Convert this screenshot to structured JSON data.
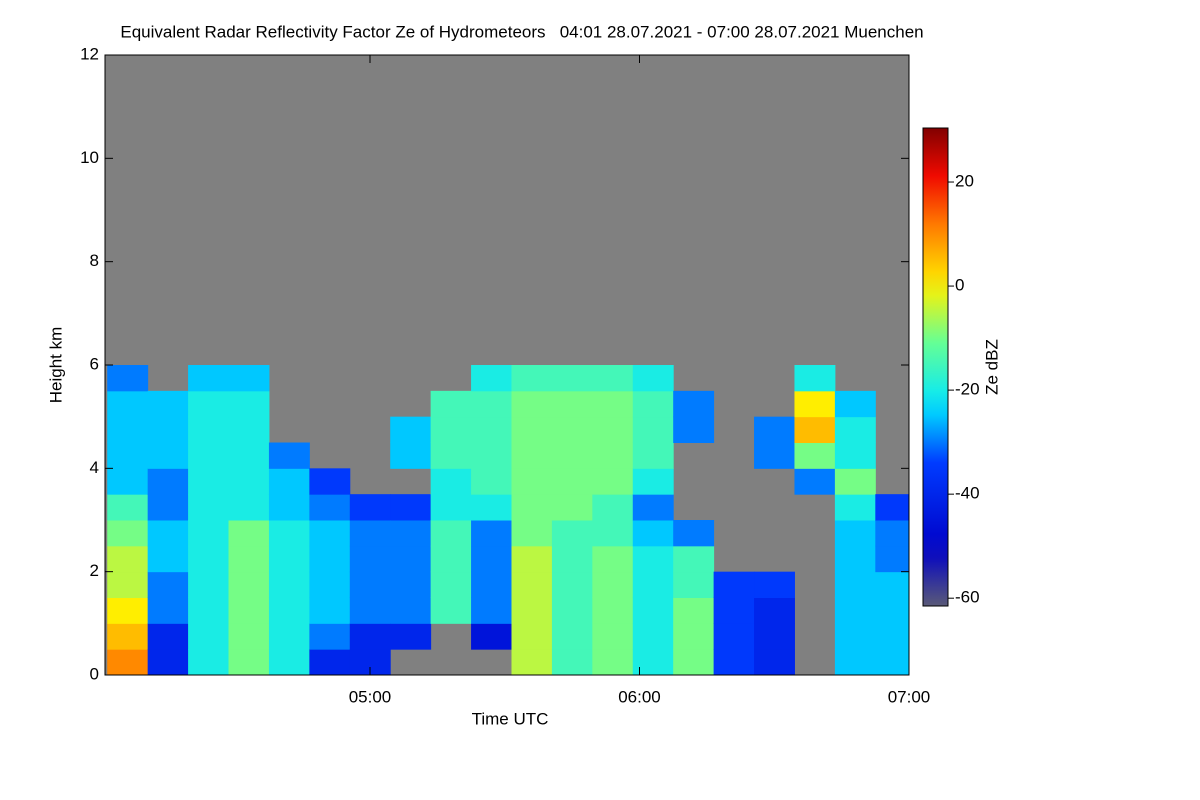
{
  "chart_data": {
    "type": "heatmap",
    "title": "Equivalent Radar Reflectivity Factor Ze of Hydrometeors   04:01 28.07.2021 - 07:00 28.07.2021 Muenchen",
    "x_label": "Time UTC",
    "y_label": "Height km",
    "colorbar_label": "Ze dBZ",
    "background": "#808080",
    "colormap": "jet",
    "xlim": [
      4.0167,
      7.0
    ],
    "xticks": [
      {
        "value": 5,
        "label": "05:00"
      },
      {
        "value": 6,
        "label": "06:00"
      },
      {
        "value": 7,
        "label": "07:00"
      }
    ],
    "ylim": [
      0,
      12
    ],
    "yticks": [
      0,
      2,
      4,
      6,
      8,
      10,
      12
    ],
    "clim": [
      -61.5,
      30
    ],
    "cticks": [
      -60,
      -40,
      -20,
      0,
      20
    ],
    "x": [
      4.1,
      4.25,
      4.4,
      4.55,
      4.7,
      4.85,
      5.0,
      5.15,
      5.3,
      5.45,
      5.6,
      5.75,
      5.9,
      6.05,
      6.2,
      6.35,
      6.5,
      6.65,
      6.8,
      6.95
    ],
    "y": [
      0.25,
      0.75,
      1.25,
      1.75,
      2.25,
      2.75,
      3.25,
      3.75,
      4.25,
      4.75,
      5.25,
      5.75
    ],
    "z": [
      [
        10,
        5,
        0,
        -5,
        -5,
        -10,
        -15,
        -25,
        -25,
        -25,
        -25,
        -30
      ],
      [
        -40,
        -40,
        -30,
        -30,
        -25,
        -25,
        -30,
        -30,
        -25,
        -25,
        -25,
        null
      ],
      [
        -20,
        -20,
        -20,
        -20,
        -20,
        -20,
        -20,
        -20,
        -20,
        -20,
        -20,
        -25
      ],
      [
        -10,
        -10,
        -10,
        -10,
        -10,
        -10,
        -20,
        -20,
        -20,
        -20,
        -20,
        -25
      ],
      [
        -20,
        -20,
        -20,
        -20,
        -20,
        -20,
        -25,
        -25,
        -30,
        null,
        null,
        null
      ],
      [
        -40,
        -30,
        -25,
        -25,
        -25,
        -25,
        -30,
        -35,
        null,
        null,
        null,
        null
      ],
      [
        -40,
        -40,
        -30,
        -30,
        -30,
        -30,
        -35,
        null,
        null,
        null,
        null,
        null
      ],
      [
        null,
        -40,
        -30,
        -30,
        -30,
        -30,
        -35,
        null,
        -25,
        -25,
        null,
        null
      ],
      [
        null,
        null,
        -15,
        -15,
        -15,
        -15,
        -20,
        -20,
        -15,
        -15,
        -15,
        null
      ],
      [
        null,
        -45,
        -30,
        -30,
        -30,
        -30,
        -20,
        -15,
        -15,
        -15,
        -15,
        -20
      ],
      [
        -5,
        -5,
        -5,
        -5,
        -5,
        -10,
        -10,
        -10,
        -10,
        -10,
        -10,
        -15
      ],
      [
        -15,
        -15,
        -15,
        -15,
        -15,
        -15,
        -10,
        -10,
        -10,
        -10,
        -10,
        -15
      ],
      [
        -10,
        -10,
        -10,
        -10,
        -10,
        -15,
        -15,
        -10,
        -10,
        -10,
        -10,
        -15
      ],
      [
        -20,
        -20,
        -20,
        -20,
        -20,
        -25,
        -30,
        -20,
        -15,
        -15,
        -15,
        -20
      ],
      [
        -10,
        -10,
        -10,
        -15,
        -15,
        -30,
        null,
        null,
        null,
        -30,
        -30,
        null
      ],
      [
        -35,
        -35,
        -35,
        -35,
        null,
        null,
        null,
        null,
        null,
        null,
        null,
        null
      ],
      [
        -40,
        -40,
        -40,
        -35,
        null,
        null,
        null,
        null,
        -30,
        -30,
        null,
        null
      ],
      [
        null,
        null,
        null,
        null,
        null,
        null,
        null,
        -30,
        -10,
        5,
        0,
        -20
      ],
      [
        -25,
        -25,
        -25,
        -25,
        -25,
        -25,
        -20,
        -10,
        -20,
        -20,
        -25,
        null
      ],
      [
        -25,
        -25,
        -25,
        -25,
        -30,
        -30,
        -35,
        null,
        null,
        null,
        null,
        null
      ]
    ]
  }
}
